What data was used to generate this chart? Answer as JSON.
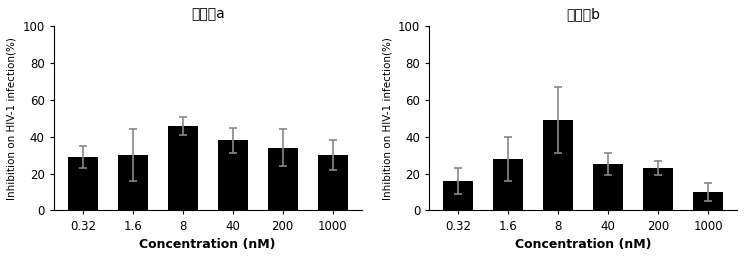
{
  "chart_a": {
    "title": "化合物a",
    "categories": [
      "0.32",
      "1.6",
      "8",
      "40",
      "200",
      "1000"
    ],
    "values": [
      29,
      30,
      46,
      38,
      34,
      30
    ],
    "errors": [
      6,
      14,
      5,
      7,
      10,
      8
    ],
    "bar_color": "#000000",
    "error_color": "#888888"
  },
  "chart_b": {
    "title": "化合物b",
    "categories": [
      "0.32",
      "1.6",
      "8",
      "40",
      "200",
      "1000"
    ],
    "values": [
      16,
      28,
      49,
      25,
      23,
      10
    ],
    "errors": [
      7,
      12,
      18,
      6,
      4,
      5
    ],
    "bar_color": "#000000",
    "error_color": "#888888"
  },
  "ylabel": "Inhibition on HIV-1 infection(%)",
  "xlabel": "Concentration (nM)",
  "ylim": [
    0,
    100
  ],
  "yticks": [
    0,
    20,
    40,
    60,
    80,
    100
  ],
  "background_color": "#ffffff",
  "title_fontsize": 12,
  "label_fontsize": 9,
  "tick_fontsize": 8.5
}
